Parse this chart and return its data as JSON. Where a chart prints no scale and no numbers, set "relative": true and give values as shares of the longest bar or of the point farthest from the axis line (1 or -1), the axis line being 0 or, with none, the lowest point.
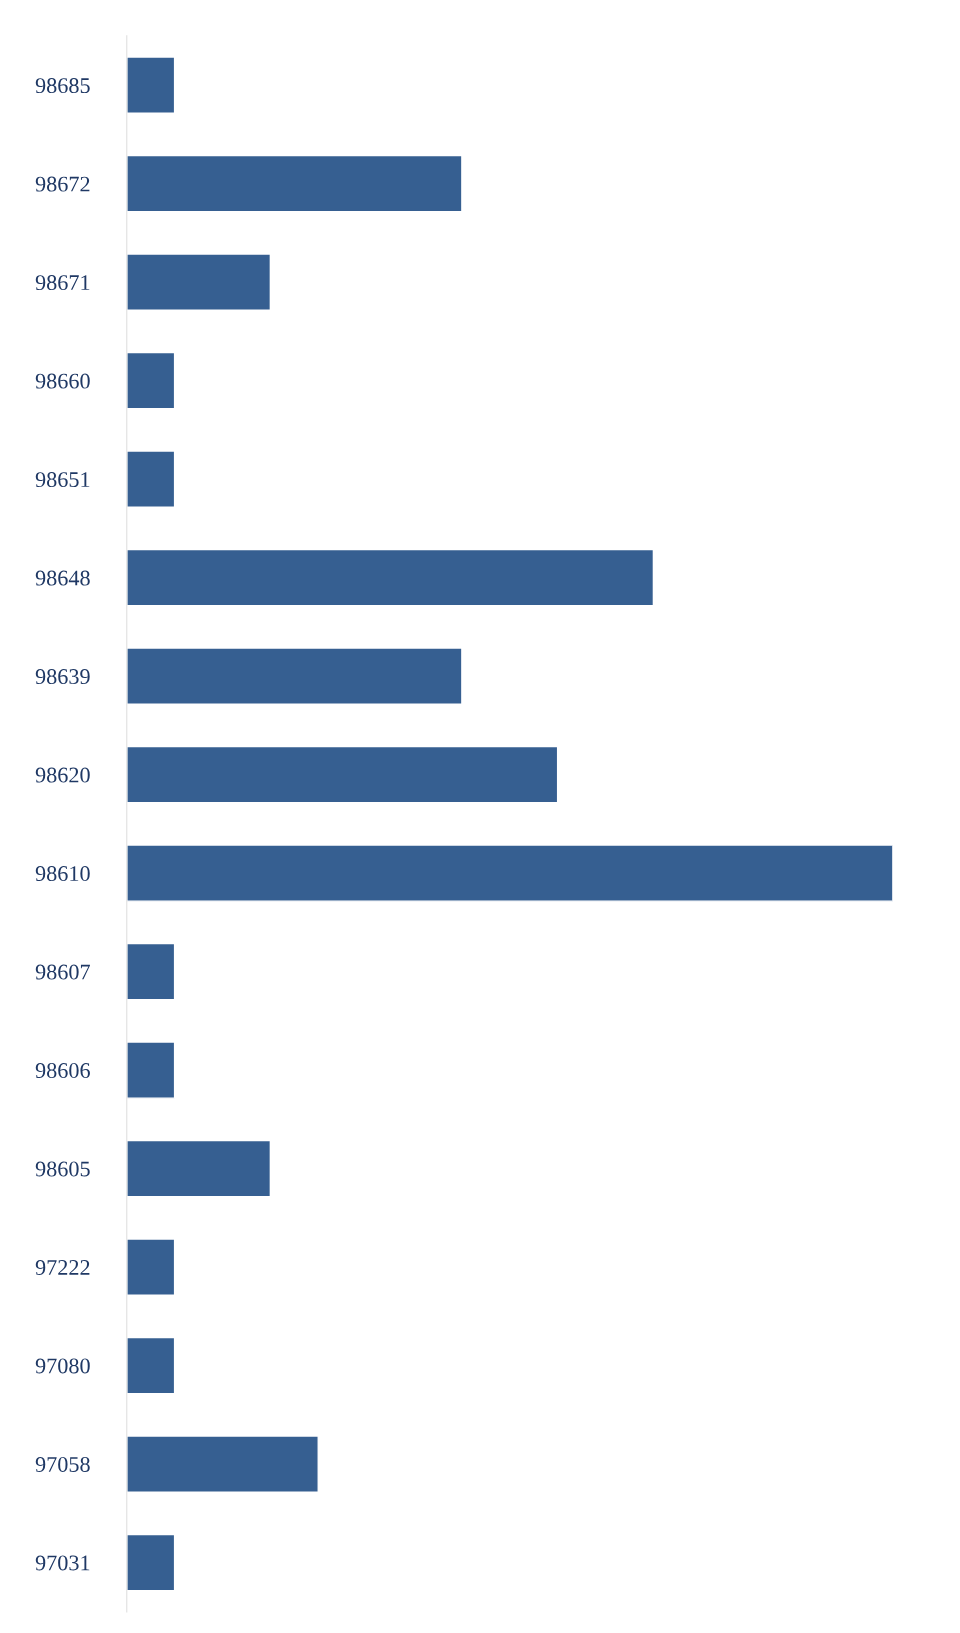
{
  "chart_data": {
    "type": "bar",
    "orientation": "horizontal",
    "relative": true,
    "categories": [
      "98685",
      "98672",
      "98671",
      "98660",
      "98651",
      "98648",
      "98639",
      "98620",
      "98610",
      "98607",
      "98606",
      "98605",
      "97222",
      "97080",
      "97058",
      "97031"
    ],
    "values": [
      0.0625,
      0.4375,
      0.1875,
      0.0625,
      0.0625,
      0.6875,
      0.4375,
      0.5625,
      1,
      0.0625,
      0.0625,
      0.1875,
      0.0625,
      0.0625,
      0.25,
      0.0625
    ],
    "color": "#365f91",
    "grid": false,
    "legend": false
  }
}
